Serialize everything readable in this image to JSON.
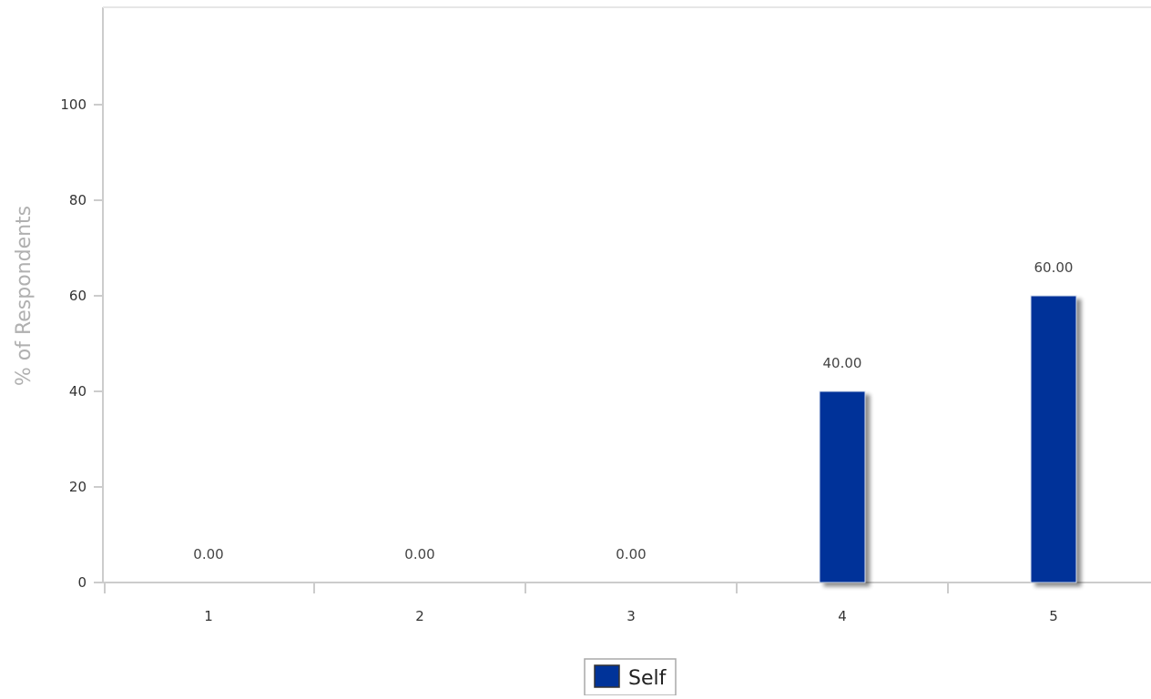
{
  "chart_data": {
    "type": "bar",
    "title": "",
    "xlabel": "",
    "ylabel": "% of Respondents",
    "categories": [
      "1",
      "2",
      "3",
      "4",
      "5"
    ],
    "series": [
      {
        "name": "Self",
        "values": [
          0,
          0,
          0,
          40,
          60
        ],
        "data_labels": [
          "0.00",
          "0.00",
          "0.00",
          "40.00",
          "60.00"
        ],
        "color": "#003399"
      }
    ],
    "ylim": [
      0,
      120
    ],
    "yticks": [
      "0",
      "20",
      "40",
      "60",
      "80",
      "100"
    ],
    "grid": false,
    "legend": "bottom-center"
  },
  "colors": {
    "axis": "#cccccc",
    "bar": "#003399",
    "shadow": "#999999"
  }
}
